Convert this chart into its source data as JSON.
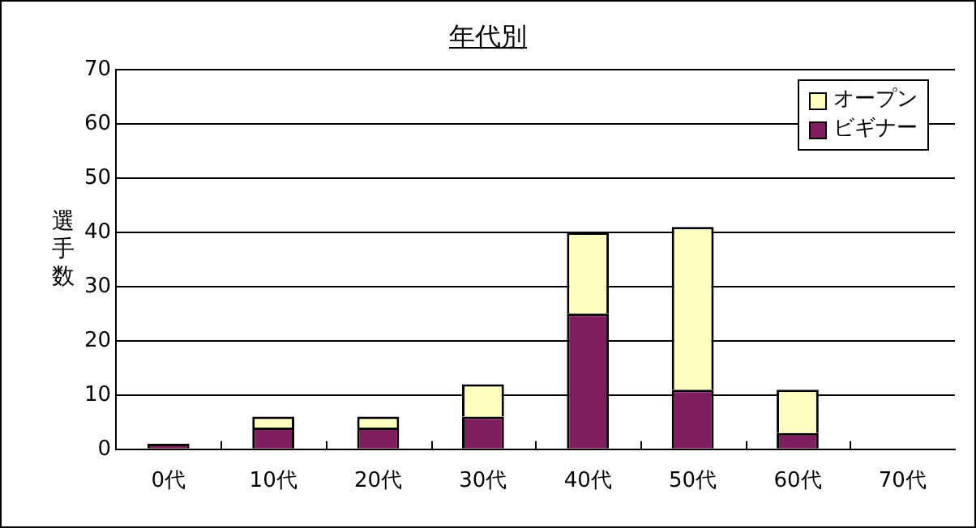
{
  "chart_data": {
    "type": "bar",
    "title": "年代別",
    "ylabel": "選手数",
    "categories": [
      "0代",
      "10代",
      "20代",
      "30代",
      "40代",
      "50代",
      "60代",
      "70代"
    ],
    "series": [
      {
        "name": "ビギナー",
        "color": "#7f1f5f",
        "values": [
          1,
          4,
          4,
          6,
          25,
          11,
          3,
          0
        ]
      },
      {
        "name": "オープン",
        "color": "#ffffc0",
        "values": [
          0,
          2,
          2,
          6,
          15,
          30,
          8,
          0
        ]
      }
    ],
    "stacked": true,
    "ylim": [
      0,
      70
    ],
    "yticks": [
      0,
      10,
      20,
      30,
      40,
      50,
      60,
      70
    ],
    "grid": "y",
    "legend": "top right"
  }
}
